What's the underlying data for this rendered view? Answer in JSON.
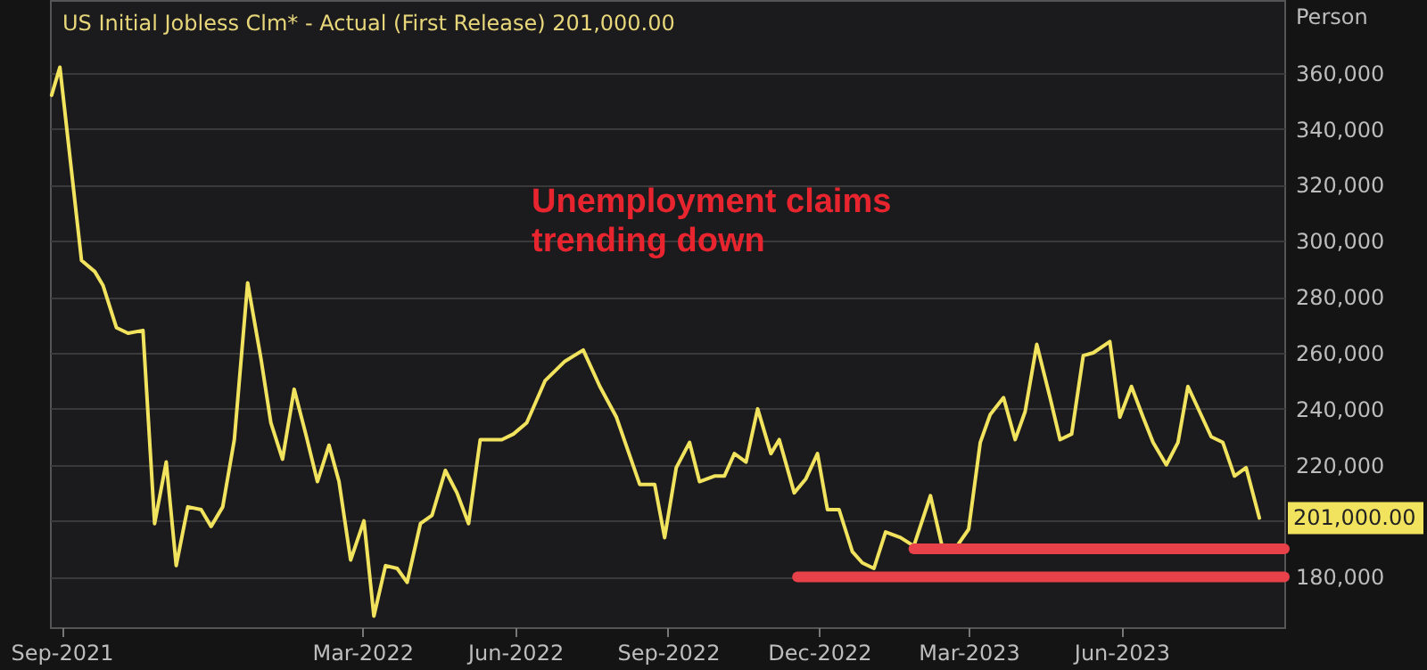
{
  "chart_data": {
    "type": "line",
    "title": "US Initial Jobless Clm* - Actual (First Release)  201,000.00",
    "ylabel": "Person",
    "annotations": [
      "Unemployment claims\ntrending down",
      {
        "text": "201,000.00",
        "x": "2023-08-23",
        "y": 201000
      }
    ],
    "series": [
      {
        "color": "#f2e35e",
        "x": [
          "2021-08-26",
          "2021-08-31",
          "2021-09-13",
          "2021-09-21",
          "2021-09-26",
          "2021-10-04",
          "2021-10-11",
          "2021-10-20",
          "2021-10-27",
          "2021-11-03",
          "2021-11-09",
          "2021-11-16",
          "2021-11-24",
          "2021-11-30",
          "2021-12-07",
          "2021-12-14",
          "2021-12-22",
          "2021-12-30",
          "2022-01-05",
          "2022-01-12",
          "2022-01-19",
          "2022-01-26",
          "2022-02-02",
          "2022-02-09",
          "2022-02-15",
          "2022-02-22",
          "2022-03-02",
          "2022-03-08",
          "2022-03-15",
          "2022-03-22",
          "2022-03-28",
          "2022-04-05",
          "2022-04-12",
          "2022-04-20",
          "2022-04-27",
          "2022-05-04",
          "2022-05-11",
          "2022-05-24",
          "2022-05-31",
          "2022-06-08",
          "2022-06-19",
          "2022-07-01",
          "2022-07-12",
          "2022-07-22",
          "2022-08-01",
          "2022-08-15",
          "2022-08-24",
          "2022-08-30",
          "2022-09-06",
          "2022-09-14",
          "2022-09-20",
          "2022-09-29",
          "2022-10-05",
          "2022-10-11",
          "2022-10-18",
          "2022-10-25",
          "2022-11-02",
          "2022-11-07",
          "2022-11-16",
          "2022-11-23",
          "2022-11-30",
          "2022-12-06",
          "2022-12-13",
          "2022-12-21",
          "2022-12-27",
          "2023-01-03",
          "2023-01-10",
          "2023-01-19",
          "2023-01-27",
          "2023-02-06",
          "2023-02-13",
          "2023-02-22",
          "2023-03-01",
          "2023-03-08",
          "2023-03-14",
          "2023-03-22",
          "2023-03-29",
          "2023-04-04",
          "2023-04-11",
          "2023-04-19",
          "2023-04-25",
          "2023-05-02",
          "2023-05-09",
          "2023-05-15",
          "2023-05-25",
          "2023-05-31",
          "2023-06-07",
          "2023-06-14",
          "2023-06-20",
          "2023-06-28",
          "2023-07-05",
          "2023-07-11",
          "2023-07-18",
          "2023-07-25",
          "2023-08-01",
          "2023-08-08",
          "2023-08-15",
          "2023-08-23"
        ],
        "values": [
          352000,
          362000,
          293000,
          289000,
          284000,
          269000,
          267000,
          268000,
          199000,
          221000,
          184000,
          205000,
          204000,
          198000,
          205000,
          229000,
          285000,
          258000,
          235000,
          222000,
          247000,
          231000,
          214000,
          227000,
          214000,
          186000,
          200000,
          166000,
          184000,
          183000,
          178000,
          199000,
          202000,
          218000,
          210000,
          199000,
          229000,
          229000,
          231000,
          235000,
          250000,
          257000,
          261000,
          248000,
          237000,
          213000,
          213000,
          194000,
          219000,
          228000,
          214000,
          216000,
          216000,
          224000,
          221000,
          240000,
          224000,
          229000,
          210000,
          215000,
          224000,
          204000,
          204000,
          189000,
          185000,
          183000,
          196000,
          194000,
          191000,
          209000,
          191000,
          191000,
          197000,
          228000,
          238000,
          244000,
          229000,
          239000,
          263000,
          244000,
          229000,
          231000,
          259000,
          260000,
          264000,
          237000,
          248000,
          237000,
          228000,
          220000,
          228000,
          248000,
          239000,
          230000,
          228000,
          216000,
          219000,
          201000
        ]
      },
      {
        "color": "#e8414a",
        "x": [
          "2023-01-27",
          "2023-09-07"
        ],
        "values": [
          190000,
          190000
        ]
      },
      {
        "color": "#e8414a",
        "x": [
          "2022-11-18",
          "2023-09-07"
        ],
        "values": [
          180000,
          180000
        ]
      }
    ],
    "xlim": [
      "2021-08-25",
      "2023-09-07"
    ],
    "xticks": [
      {
        "value": "2021-09-01",
        "label": "Sep-2021"
      },
      {
        "value": "2022-03-01",
        "label": "Mar-2022"
      },
      {
        "value": "2022-06-01",
        "label": "Jun-2022"
      },
      {
        "value": "2022-09-01",
        "label": "Sep-2022"
      },
      {
        "value": "2022-12-01",
        "label": "Dec-2022"
      },
      {
        "value": "2023-03-01",
        "label": "Mar-2023"
      },
      {
        "value": "2023-06-01",
        "label": "Jun-2023"
      }
    ],
    "ylim": [
      162000,
      386000
    ],
    "yticks": [
      {
        "value": 180000,
        "label": "180,000"
      },
      {
        "value": 200000,
        "label": null
      },
      {
        "value": 220000,
        "label": "220,000"
      },
      {
        "value": 240000,
        "label": "240,000"
      },
      {
        "value": 260000,
        "label": "260,000"
      },
      {
        "value": 280000,
        "label": "280,000"
      },
      {
        "value": 300000,
        "label": "300,000"
      },
      {
        "value": 320000,
        "label": "320,000"
      },
      {
        "value": 340000,
        "label": "340,000"
      },
      {
        "value": 360000,
        "label": "360,000"
      }
    ],
    "grid": "y"
  }
}
